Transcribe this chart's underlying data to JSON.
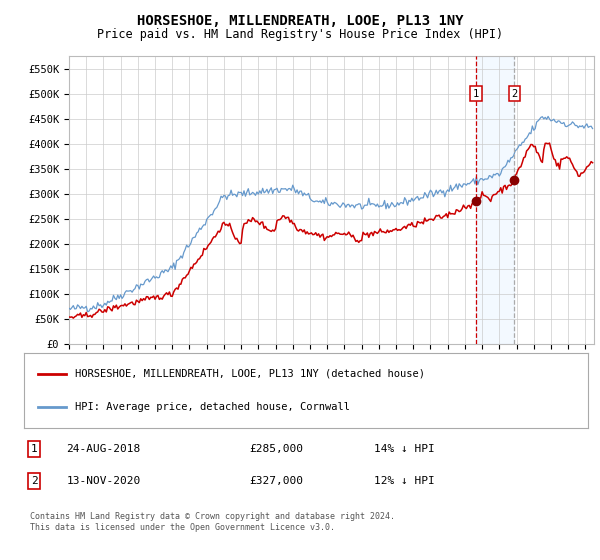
{
  "title": "HORSESHOE, MILLENDREATH, LOOE, PL13 1NY",
  "subtitle": "Price paid vs. HM Land Registry's House Price Index (HPI)",
  "title_fontsize": 10,
  "subtitle_fontsize": 8.5,
  "ylim": [
    0,
    575000
  ],
  "xlim_start": 1995.0,
  "xlim_end": 2025.5,
  "ytick_labels": [
    "£0",
    "£50K",
    "£100K",
    "£150K",
    "£200K",
    "£250K",
    "£300K",
    "£350K",
    "£400K",
    "£450K",
    "£500K",
    "£550K"
  ],
  "ytick_values": [
    0,
    50000,
    100000,
    150000,
    200000,
    250000,
    300000,
    350000,
    400000,
    450000,
    500000,
    550000
  ],
  "hpi_line_color": "#6699cc",
  "price_line_color": "#cc0000",
  "marker_color": "#880000",
  "vline1_color": "#cc0000",
  "vline2_color": "#aaaaaa",
  "shade_color": "#ddeeff",
  "point1_date": 2018.65,
  "point1_value": 285000,
  "point2_date": 2020.87,
  "point2_value": 327000,
  "legend_label1": "HORSESHOE, MILLENDREATH, LOOE, PL13 1NY (detached house)",
  "legend_label2": "HPI: Average price, detached house, Cornwall",
  "table_row1": [
    "1",
    "24-AUG-2018",
    "£285,000",
    "14% ↓ HPI"
  ],
  "table_row2": [
    "2",
    "13-NOV-2020",
    "£327,000",
    "12% ↓ HPI"
  ],
  "footer": "Contains HM Land Registry data © Crown copyright and database right 2024.\nThis data is licensed under the Open Government Licence v3.0.",
  "background_color": "#ffffff",
  "grid_color": "#cccccc"
}
